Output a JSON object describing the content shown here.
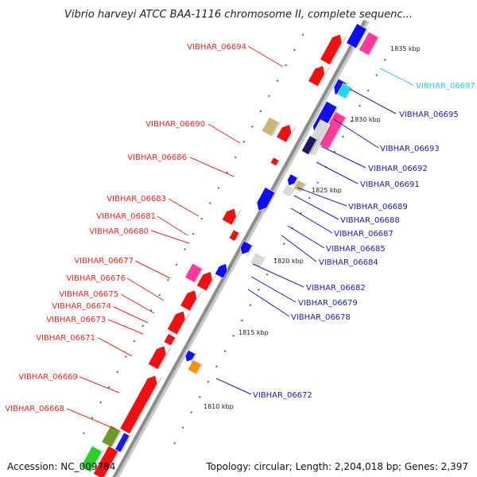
{
  "title": "Vibrio harveyi ATCC BAA-1116 chromosome II, complete sequenc...",
  "footer": {
    "accession": "Accession: NC_009784",
    "topology": "Topology: circular; Length: 2,204,018 bp; Genes: 2,397"
  },
  "colors": {
    "label_left": "#e8251f",
    "label_right": "#1a1aaa",
    "label_highlight": "#33c4e8",
    "backbone": "#8c8c8c",
    "tick": "#1a8c1a"
  },
  "kbp_ticks": [
    "1835 kbp",
    "1830 kbp",
    "1825 kbp",
    "1820 kbp",
    "1815 kbp",
    "1810 kbp"
  ],
  "labels_left": [
    "VIBHAR_06694",
    "VIBHAR_06690",
    "VIBHAR_06686",
    "VIBHAR_06683",
    "VIBHAR_06681",
    "VIBHAR_06680",
    "VIBHAR_06677",
    "VIBHAR_06676",
    "VIBHAR_06675",
    "VIBHAR_06674",
    "VIBHAR_06673",
    "VIBHAR_06671",
    "VIBHAR_06669",
    "VIBHAR_06668"
  ],
  "labels_right": [
    "VIBHAR_06697",
    "VIBHAR_06695",
    "VIBHAR_06693",
    "VIBHAR_06692",
    "VIBHAR_06691",
    "VIBHAR_06689",
    "VIBHAR_06688",
    "VIBHAR_06687",
    "VIBHAR_06685",
    "VIBHAR_06684",
    "VIBHAR_06682",
    "VIBHAR_06679",
    "VIBHAR_06678",
    "VIBHAR_06672"
  ]
}
